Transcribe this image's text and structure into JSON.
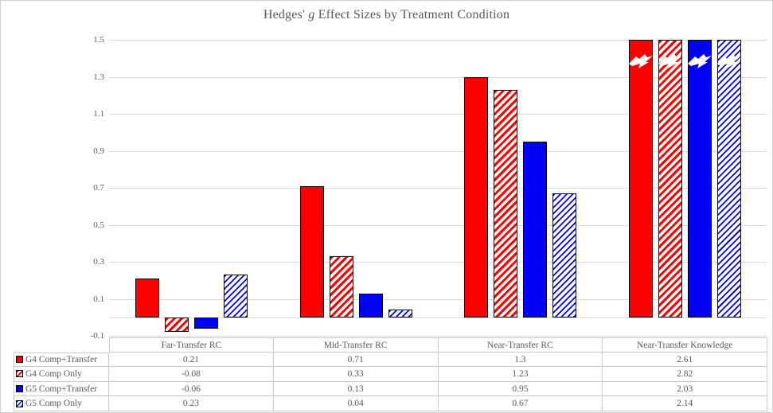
{
  "chart_data": {
    "type": "bar",
    "title": "Hedges' g Effect Sizes by Treatment Condition",
    "title_parts": {
      "prefix": "Hedges'",
      "italic": "g",
      "suffix": "Effect Sizes by Treatment Condition"
    },
    "categories": [
      "Far-Transfer RC",
      "Mid-Transfer RC",
      "Near-Transfer RC",
      "Near-Transfer Knowledge"
    ],
    "series": [
      {
        "name": "G4 Comp+Transfer",
        "color": "#ff0000",
        "pattern": "solid",
        "values": [
          0.21,
          0.71,
          1.3,
          2.61
        ]
      },
      {
        "name": "G4 Comp Only",
        "color": "#ff0000",
        "pattern": "hatch",
        "values": [
          -0.08,
          0.33,
          1.23,
          2.82
        ]
      },
      {
        "name": "G5 Comp+Transfer",
        "color": "#0000ff",
        "pattern": "solid",
        "values": [
          -0.06,
          0.13,
          0.95,
          2.03
        ]
      },
      {
        "name": "G5 Comp Only",
        "color": "#0000ff",
        "pattern": "hatch",
        "values": [
          0.23,
          0.04,
          0.67,
          2.14
        ]
      }
    ],
    "ylim": [
      -0.1,
      1.5
    ],
    "yticks": [
      1.5,
      1.3,
      1.1,
      0.9,
      0.7,
      0.5,
      0.3,
      0.1,
      -0.1
    ],
    "ytick_labels": [
      "1.5",
      "1.3",
      "1.1",
      "0.9",
      "0.7",
      "0.5",
      "0.3",
      "0.1",
      "-0.1"
    ],
    "baseline": 0,
    "grid": true,
    "legend_position": "data-table-left-column",
    "axis_break_marker": "lightning-bolt-icon",
    "clipped_note": "bars above 1.5 are clipped at plot top with white lightning-bolt break marks"
  },
  "table": {
    "headers": [
      "",
      "Far-Transfer RC",
      "Mid-Transfer RC",
      "Near-Transfer RC",
      "Near-Transfer Knowledge"
    ],
    "rows": [
      {
        "label": "G4 Comp+Transfer",
        "values": [
          "0.21",
          "0.71",
          "1.3",
          "2.61"
        ]
      },
      {
        "label": "G4 Comp Only",
        "values": [
          "-0.08",
          "0.33",
          "1.23",
          "2.82"
        ]
      },
      {
        "label": "G5 Comp+Transfer",
        "values": [
          "-0.06",
          "0.13",
          "0.95",
          "2.03"
        ]
      },
      {
        "label": "G5 Comp Only",
        "values": [
          "0.23",
          "0.04",
          "0.67",
          "2.14"
        ]
      }
    ]
  },
  "colors": {
    "bar_red": "#ff0000",
    "bar_blue": "#0000ff",
    "bar_border": "#000000",
    "gridline": "#d9d9d9",
    "table_border": "#c9c9c9",
    "text": "#595959",
    "background": "#ffffff",
    "break_marker": "#ffffff"
  }
}
